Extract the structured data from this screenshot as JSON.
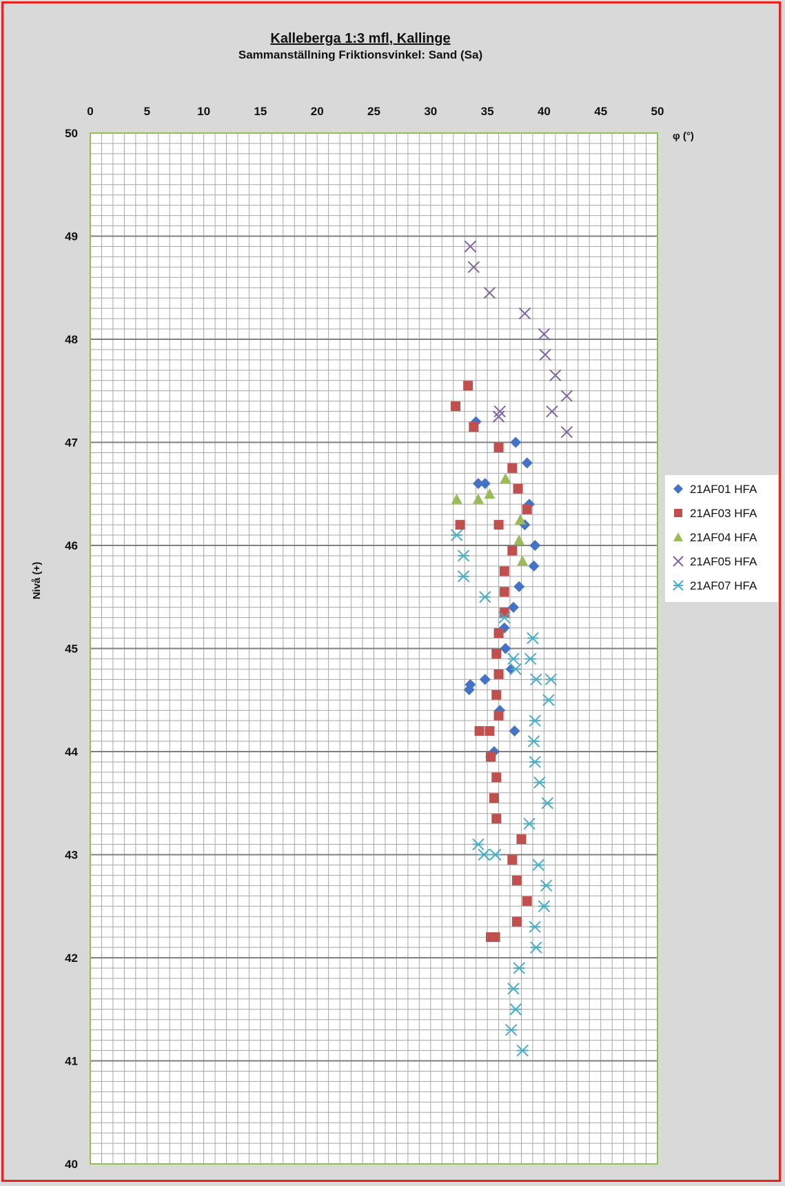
{
  "chart_data": {
    "type": "scatter",
    "title": "Kalleberga 1:3 mfl, Kallinge",
    "subtitle": "Sammanställning Friktionsvinkel: Sand (Sa)",
    "xlabel": "φ (°)",
    "ylabel": "Nivå (+)",
    "xlim": [
      0,
      50
    ],
    "ylim": [
      40,
      50
    ],
    "x_axis_position": "top",
    "x_ticks": [
      "0",
      "5",
      "10",
      "15",
      "20",
      "25",
      "30",
      "35",
      "40",
      "45",
      "50"
    ],
    "y_ticks": [
      "50",
      "49",
      "48",
      "47",
      "46",
      "45",
      "44",
      "43",
      "42",
      "41",
      "40"
    ],
    "grid": true,
    "legend_position": "right",
    "colors": {
      "series1": "#4472c4",
      "series2": "#c0504d",
      "series3": "#9bbb59",
      "series4": "#8064a2",
      "series5": "#4bacc6",
      "plot_border": "#92c050",
      "grid_major": "#7f7f7f",
      "grid_minor": "#a6a6a6"
    },
    "series": [
      {
        "name": "21AF01 HFA",
        "marker": "diamond",
        "points": [
          [
            34.0,
            47.2
          ],
          [
            37.5,
            47.0
          ],
          [
            38.5,
            46.8
          ],
          [
            34.2,
            46.6
          ],
          [
            34.8,
            46.6
          ],
          [
            38.7,
            46.4
          ],
          [
            38.3,
            46.2
          ],
          [
            39.2,
            46.0
          ],
          [
            39.1,
            45.8
          ],
          [
            37.8,
            45.6
          ],
          [
            37.3,
            45.4
          ],
          [
            36.5,
            45.2
          ],
          [
            36.6,
            45.0
          ],
          [
            37.1,
            44.8
          ],
          [
            34.8,
            44.7
          ],
          [
            33.4,
            44.6
          ],
          [
            33.5,
            44.65
          ],
          [
            36.1,
            44.4
          ],
          [
            37.4,
            44.2
          ],
          [
            35.6,
            44.0
          ],
          [
            35.3,
            43.95
          ]
        ]
      },
      {
        "name": "21AF03 HFA",
        "marker": "square",
        "points": [
          [
            33.3,
            47.55
          ],
          [
            32.2,
            47.35
          ],
          [
            33.8,
            47.15
          ],
          [
            36.0,
            46.95
          ],
          [
            37.2,
            46.75
          ],
          [
            37.7,
            46.55
          ],
          [
            38.5,
            46.35
          ],
          [
            36.0,
            46.2
          ],
          [
            32.6,
            46.2
          ],
          [
            37.2,
            45.95
          ],
          [
            36.5,
            45.75
          ],
          [
            36.5,
            45.55
          ],
          [
            36.5,
            45.35
          ],
          [
            36.0,
            45.15
          ],
          [
            35.8,
            44.95
          ],
          [
            36.0,
            44.75
          ],
          [
            35.8,
            44.55
          ],
          [
            36.0,
            44.35
          ],
          [
            35.2,
            44.2
          ],
          [
            34.3,
            44.2
          ],
          [
            35.3,
            43.95
          ],
          [
            35.8,
            43.75
          ],
          [
            35.6,
            43.55
          ],
          [
            35.8,
            43.35
          ],
          [
            38.0,
            43.15
          ],
          [
            37.2,
            42.95
          ],
          [
            37.6,
            42.75
          ],
          [
            38.5,
            42.55
          ],
          [
            37.6,
            42.35
          ],
          [
            35.3,
            42.2
          ],
          [
            35.7,
            42.2
          ]
        ]
      },
      {
        "name": "21AF04 HFA",
        "marker": "triangle",
        "points": [
          [
            36.6,
            46.65
          ],
          [
            32.3,
            46.45
          ],
          [
            34.2,
            46.45
          ],
          [
            35.2,
            46.5
          ],
          [
            37.9,
            46.25
          ],
          [
            37.8,
            46.05
          ],
          [
            38.1,
            45.85
          ]
        ]
      },
      {
        "name": "21AF05 HFA",
        "marker": "x",
        "points": [
          [
            33.5,
            48.9
          ],
          [
            33.8,
            48.7
          ],
          [
            35.2,
            48.45
          ],
          [
            38.3,
            48.25
          ],
          [
            40.0,
            48.05
          ],
          [
            40.1,
            47.85
          ],
          [
            41.0,
            47.65
          ],
          [
            42.0,
            47.45
          ],
          [
            36.1,
            47.3
          ],
          [
            36.0,
            47.25
          ],
          [
            40.7,
            47.3
          ],
          [
            42.0,
            47.1
          ]
        ]
      },
      {
        "name": "21AF07 HFA",
        "marker": "asterisk",
        "points": [
          [
            32.3,
            46.1
          ],
          [
            32.9,
            45.9
          ],
          [
            32.9,
            45.7
          ],
          [
            34.8,
            45.5
          ],
          [
            36.5,
            45.3
          ],
          [
            39.0,
            45.1
          ],
          [
            37.3,
            44.9
          ],
          [
            38.8,
            44.9
          ],
          [
            37.5,
            44.8
          ],
          [
            39.3,
            44.7
          ],
          [
            40.6,
            44.7
          ],
          [
            40.4,
            44.5
          ],
          [
            39.2,
            44.3
          ],
          [
            39.1,
            44.1
          ],
          [
            39.2,
            43.9
          ],
          [
            39.6,
            43.7
          ],
          [
            40.3,
            43.5
          ],
          [
            38.7,
            43.3
          ],
          [
            34.2,
            43.1
          ],
          [
            34.7,
            43.0
          ],
          [
            35.7,
            43.0
          ],
          [
            39.5,
            42.9
          ],
          [
            40.2,
            42.7
          ],
          [
            40.0,
            42.5
          ],
          [
            39.2,
            42.3
          ],
          [
            39.3,
            42.1
          ],
          [
            37.8,
            41.9
          ],
          [
            37.3,
            41.7
          ],
          [
            37.5,
            41.5
          ],
          [
            37.1,
            41.3
          ],
          [
            38.1,
            41.1
          ]
        ]
      }
    ]
  }
}
